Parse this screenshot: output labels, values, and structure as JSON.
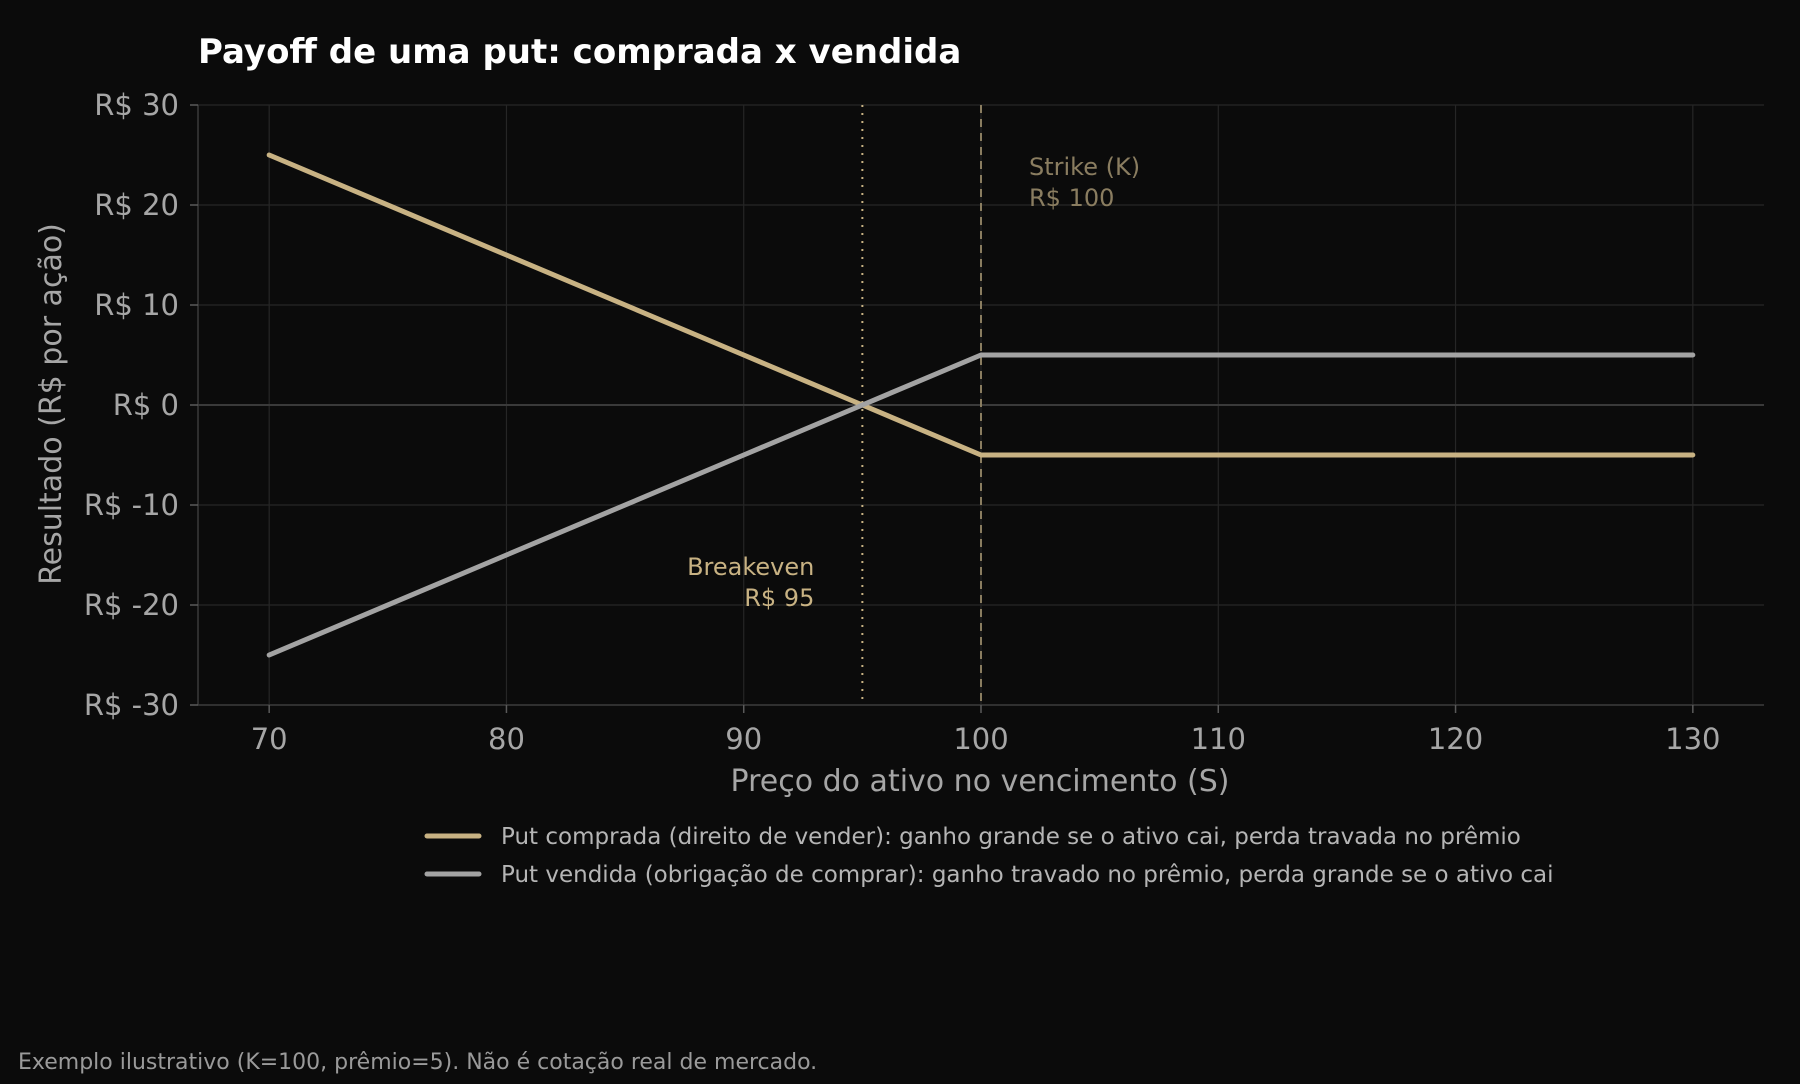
{
  "colors": {
    "background": "#0b0b0b",
    "long_put": "#c8b283",
    "short_put": "#a3a3a3",
    "strike_line": "#8a7d60",
    "breakeven_line": "#c8b283",
    "grid": "#262626",
    "zero_line": "#3a3a3a"
  },
  "chart_data": {
    "type": "line",
    "title": "Payoff de uma put: comprada x vendida",
    "xlabel": "Preço do ativo no vencimento (S)",
    "ylabel": "Resultado (R$ por ação)",
    "xlim": [
      67,
      133
    ],
    "ylim": [
      -30,
      30
    ],
    "x_ticks": [
      70,
      80,
      90,
      100,
      110,
      120,
      130
    ],
    "x_tick_labels": [
      "70",
      "80",
      "90",
      "100",
      "110",
      "120",
      "130"
    ],
    "y_ticks": [
      30,
      20,
      10,
      0,
      -10,
      -20,
      -30
    ],
    "y_tick_labels": [
      "R$ 30",
      "R$ 20",
      "R$ 10",
      "R$ 0",
      "R$ -10",
      "R$ -20",
      "R$ -30"
    ],
    "grid": true,
    "legend_position": "bottom-center",
    "series": [
      {
        "name": "Put comprada (direito de vender): ganho grande se o ativo cai, perda travada no prêmio",
        "color": "#c8b283",
        "x": [
          70,
          80,
          90,
          95,
          100,
          110,
          120,
          130
        ],
        "y": [
          25,
          15,
          5,
          0,
          -5,
          -5,
          -5,
          -5
        ]
      },
      {
        "name": "Put vendida (obrigação de comprar): ganho travado no prêmio, perda grande se o ativo cai",
        "color": "#a3a3a3",
        "x": [
          70,
          80,
          90,
          95,
          100,
          110,
          120,
          130
        ],
        "y": [
          -25,
          -15,
          -5,
          0,
          5,
          5,
          5,
          5
        ]
      }
    ],
    "annotations": [
      {
        "kind": "vline",
        "x": 100,
        "style": "dashed",
        "color": "#8a7d60",
        "label_lines": [
          "Strike (K)",
          "R$ 100"
        ],
        "label_y": 23
      },
      {
        "kind": "vline",
        "x": 95,
        "style": "dotted",
        "color": "#c8b283",
        "label_lines": [
          "Breakeven",
          "R$ 95"
        ],
        "label_y": -17
      }
    ]
  },
  "footnote": "Exemplo ilustrativo (K=100, prêmio=5). Não é cotação real de mercado."
}
